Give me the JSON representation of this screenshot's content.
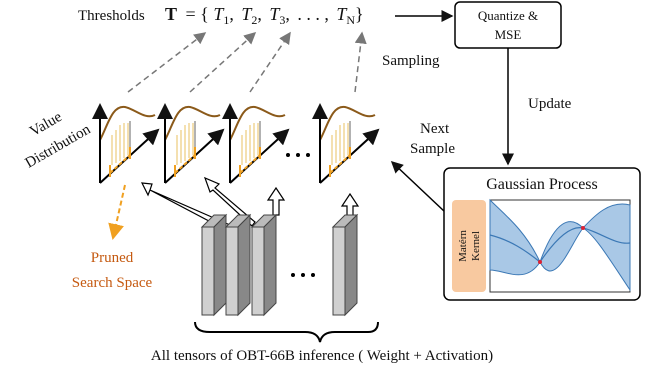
{
  "header": {
    "thresholds_label": "Thresholds",
    "formula": {
      "symbol": "T",
      "open": "= {",
      "elements": [
        {
          "base": "T",
          "sub": "1",
          "sep": ","
        },
        {
          "base": "T",
          "sub": "2",
          "sep": ","
        },
        {
          "base": "T",
          "sub": "3",
          "sep": ","
        },
        {
          "base": ". . . ,",
          "sub": "",
          "sep": ""
        },
        {
          "base": "T",
          "sub": "N",
          "sep": ""
        }
      ],
      "close": "}"
    }
  },
  "nodes": {
    "quantize": [
      "Quantize &",
      "MSE"
    ],
    "update": "Update",
    "sampling": "Sampling",
    "next_sample": [
      "Next",
      "Sample"
    ],
    "value_distribution": [
      "Value",
      "Distribution"
    ],
    "gaussian_process": "Gaussian Process",
    "kernel": [
      "Matérn",
      "Kernel"
    ],
    "pruned": [
      "Pruned",
      "Search Space"
    ],
    "caption": "All tensors of OBT-66B inference ( Weight + Activation)"
  }
}
